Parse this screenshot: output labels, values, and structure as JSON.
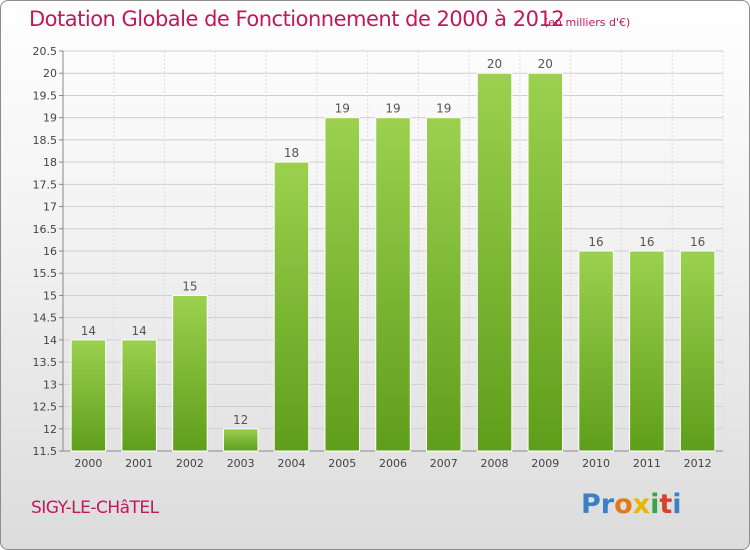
{
  "header": {
    "title": "Dotation Globale de Fonctionnement de 2000 à 2012",
    "unit": "(en milliers d'€)"
  },
  "footer": {
    "commune": "SIGY-LE-CHâTEL",
    "logo": [
      "Pr",
      "o",
      "x",
      "i",
      "t",
      "i"
    ]
  },
  "colors": {
    "bar_light": "#9bd14f",
    "bar_dark": "#5f9e1a",
    "title": "#c2185b"
  },
  "chart_data": {
    "type": "bar",
    "title": "Dotation Globale de Fonctionnement de 2000 à 2012",
    "subtitle": "(en milliers d'€)",
    "xlabel": "",
    "ylabel": "",
    "categories": [
      "2000",
      "2001",
      "2002",
      "2003",
      "2004",
      "2005",
      "2006",
      "2007",
      "2008",
      "2009",
      "2010",
      "2011",
      "2012"
    ],
    "values": [
      14,
      14,
      15,
      12,
      18,
      19,
      19,
      19,
      20,
      20,
      16,
      16,
      16
    ],
    "value_labels": [
      "14",
      "14",
      "15",
      "12",
      "18",
      "19",
      "19",
      "19",
      "20",
      "20",
      "16",
      "16",
      "16"
    ],
    "ylim": [
      11.5,
      20.5
    ],
    "yticks": [
      11.5,
      12,
      12.5,
      13,
      13.5,
      14,
      14.5,
      15,
      15.5,
      16,
      16.5,
      17,
      17.5,
      18,
      18.5,
      19,
      19.5,
      20,
      20.5
    ],
    "ytick_labels": [
      "11.5",
      "12",
      "12.5",
      "13",
      "13.5",
      "14",
      "14.5",
      "15",
      "15.5",
      "16",
      "16.5",
      "17",
      "17.5",
      "18",
      "18.5",
      "19",
      "19.5",
      "20",
      "20.5"
    ],
    "grid": true
  }
}
